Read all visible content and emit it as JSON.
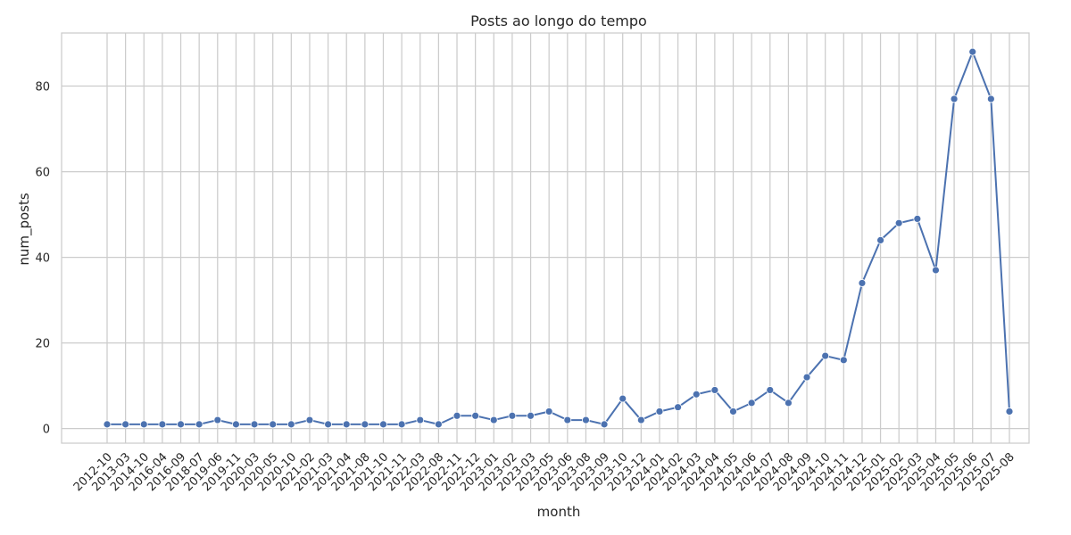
{
  "chart_data": {
    "type": "line",
    "title": "Posts ao longo do tempo",
    "xlabel": "month",
    "ylabel": "num_posts",
    "ylim": [
      -3.4,
      92.4
    ],
    "yticks": [
      0,
      20,
      40,
      60,
      80
    ],
    "grid": true,
    "legend": "none",
    "categories": [
      "2012-10",
      "2013-03",
      "2014-10",
      "2016-04",
      "2016-09",
      "2018-07",
      "2019-06",
      "2019-11",
      "2020-03",
      "2020-05",
      "2020-10",
      "2021-02",
      "2021-03",
      "2021-04",
      "2021-08",
      "2021-10",
      "2021-11",
      "2022-03",
      "2022-08",
      "2022-11",
      "2022-12",
      "2023-01",
      "2023-02",
      "2023-03",
      "2023-05",
      "2023-06",
      "2023-08",
      "2023-09",
      "2023-10",
      "2023-12",
      "2024-01",
      "2024-02",
      "2024-03",
      "2024-04",
      "2024-05",
      "2024-06",
      "2024-07",
      "2024-08",
      "2024-09",
      "2024-10",
      "2024-11",
      "2024-12",
      "2025-01",
      "2025-02",
      "2025-03",
      "2025-04",
      "2025-05",
      "2025-06",
      "2025-07",
      "2025-08"
    ],
    "values": [
      1,
      1,
      1,
      1,
      1,
      1,
      2,
      1,
      1,
      1,
      1,
      2,
      1,
      1,
      1,
      1,
      1,
      2,
      1,
      3,
      3,
      2,
      3,
      3,
      4,
      2,
      2,
      1,
      7,
      2,
      4,
      5,
      8,
      9,
      4,
      6,
      9,
      6,
      12,
      17,
      16,
      34,
      44,
      48,
      49,
      37,
      77,
      88,
      77,
      4
    ],
    "colors": {
      "line": "#4c72b0",
      "grid": "#cccccc",
      "frame": "#cccccc",
      "text": "#262626"
    }
  }
}
